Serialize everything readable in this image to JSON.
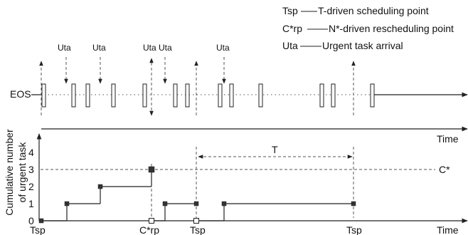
{
  "legend": {
    "tsp_key": "Tsp",
    "tsp_desc": "T-driven scheduling point",
    "crp_key": "C*rp",
    "crp_desc": "N*-driven rescheduling point",
    "uta_key": "Uta",
    "uta_desc": "Urgent task arrival"
  },
  "timeline": {
    "label": "EOS",
    "uta_labels": [
      "Uta",
      "Uta",
      "Uta",
      "Uta",
      "Uta"
    ]
  },
  "plot": {
    "y_axis_title_line1": "Cumulative number",
    "y_axis_title_line2": "of urgent task",
    "x_axis_label_upper": "Time",
    "x_axis_label_lower": "Time",
    "y_ticks": [
      "0",
      "1",
      "2",
      "3",
      "4"
    ],
    "x_markers": [
      "Tsp",
      "C*rp",
      "Tsp",
      "Tsp"
    ],
    "period_label": "T",
    "threshold_label": "C*"
  },
  "chart_data": {
    "type": "line",
    "title": "",
    "ylabel": "Cumulative number of urgent task",
    "xlabel": "Time",
    "ylim": [
      0,
      4
    ],
    "threshold": 3,
    "series": [
      {
        "name": "",
        "x": [
          0,
          1,
          2,
          3,
          3,
          4,
          5,
          5,
          6,
          7,
          8
        ],
        "y": [
          0,
          1,
          2,
          3,
          0,
          1,
          1,
          0,
          1,
          1,
          0
        ]
      }
    ]
  }
}
